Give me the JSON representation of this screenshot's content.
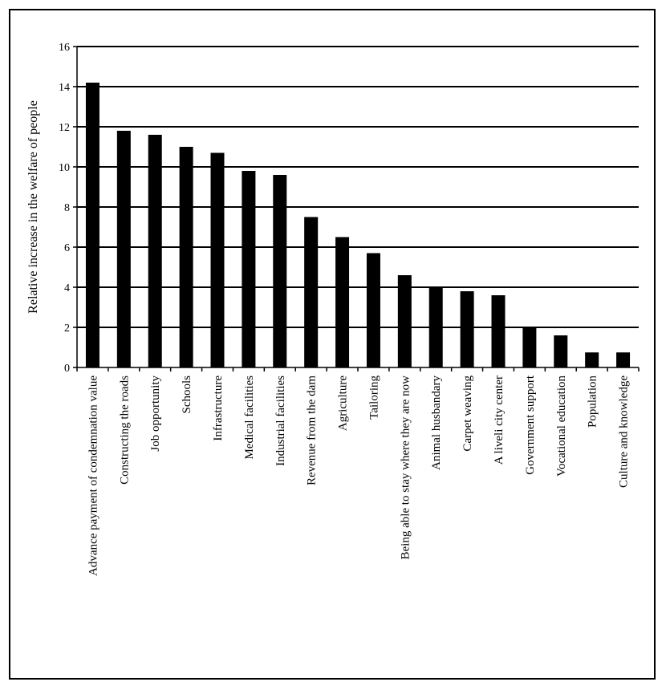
{
  "chart_data": {
    "type": "bar",
    "title": "",
    "xlabel": "",
    "ylabel": "Relative increase in the welfare of people",
    "ylim": [
      0,
      16
    ],
    "yticks": [
      0,
      2,
      4,
      6,
      8,
      10,
      12,
      14,
      16
    ],
    "grid": true,
    "legend": "none",
    "bar_color": "#000000",
    "categories": [
      "Advance payment of condemnation value",
      "Constructing the roads",
      "Job opportunity",
      "Schools",
      "Infrastructure",
      "Medical facilities",
      "Industrial facilities",
      "Revenue from the dam",
      "Agriculture",
      "Tailoring",
      "Being able to stay where they are now",
      "Animal husbandary",
      "Carpet weaving",
      "A liveli city center",
      "Government support",
      "Vocational education",
      "Population",
      "Culture and knowledge"
    ],
    "values": [
      14.2,
      11.8,
      11.6,
      11.0,
      10.7,
      9.8,
      9.6,
      7.5,
      6.5,
      5.7,
      4.6,
      4.0,
      3.8,
      3.6,
      2.0,
      1.6,
      0.75,
      0.75
    ]
  }
}
